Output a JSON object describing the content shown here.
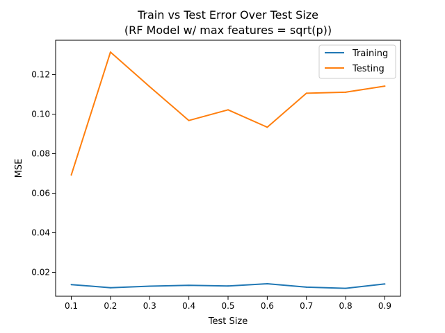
{
  "chart_data": {
    "type": "line",
    "title": "Train vs Test Error Over Test Size",
    "subtitle": "(RF Model w/ max features = sqrt(p))",
    "xlabel": "Test Size",
    "ylabel": "MSE",
    "x": [
      0.1,
      0.2,
      0.3,
      0.4,
      0.5,
      0.6,
      0.7,
      0.8,
      0.9
    ],
    "x_ticks": [
      "0.1",
      "0.2",
      "0.3",
      "0.4",
      "0.5",
      "0.6",
      "0.7",
      "0.8",
      "0.9"
    ],
    "y_ticks": [
      "0.02",
      "0.04",
      "0.06",
      "0.08",
      "0.10",
      "0.12"
    ],
    "y_tick_values": [
      0.02,
      0.04,
      0.06,
      0.08,
      0.1,
      0.12
    ],
    "xlim": [
      0.06,
      0.94
    ],
    "ylim": [
      0.0079,
      0.1374
    ],
    "grid": false,
    "legend_position": "top-right",
    "series": [
      {
        "name": "Training",
        "color": "#1f77b4",
        "values": [
          0.0138,
          0.0122,
          0.013,
          0.0134,
          0.0131,
          0.0142,
          0.0125,
          0.0119,
          0.0141
        ]
      },
      {
        "name": "Testing",
        "color": "#ff7f0e",
        "values": [
          0.0692,
          0.1314,
          0.1139,
          0.0968,
          0.1022,
          0.0934,
          0.1106,
          0.1111,
          0.1142
        ]
      }
    ]
  }
}
